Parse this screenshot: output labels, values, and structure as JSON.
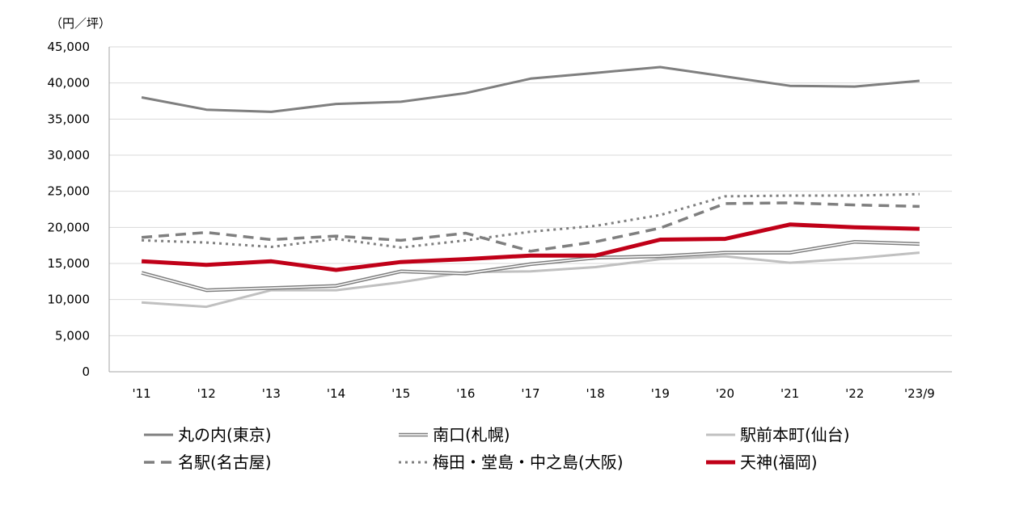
{
  "chart_data": {
    "type": "line",
    "unit_label": "（円／坪）",
    "x": [
      "'11",
      "'12",
      "'13",
      "'14",
      "'15",
      "'16",
      "'17",
      "'18",
      "'19",
      "'20",
      "'21",
      "'22",
      "'23/9"
    ],
    "y_ticks": [
      "0",
      "5,000",
      "10,000",
      "15,000",
      "20,000",
      "25,000",
      "30,000",
      "35,000",
      "40,000",
      "45,000"
    ],
    "ylim": [
      0,
      45000
    ],
    "grid": true,
    "legend_position": "bottom",
    "series": [
      {
        "name": "丸の内(東京)",
        "color": "#7f7f7f",
        "style": "solid",
        "values": [
          38000,
          36300,
          36000,
          37100,
          37400,
          38600,
          40600,
          41400,
          42200,
          40900,
          39600,
          39500,
          40300
        ]
      },
      {
        "name": "南口(札幌)",
        "color": "#7f7f7f",
        "style": "double",
        "values": [
          13700,
          11300,
          11600,
          11900,
          13900,
          13600,
          14900,
          15800,
          16000,
          16500,
          16500,
          18000,
          17700
        ]
      },
      {
        "name": "駅前本町(仙台)",
        "color": "#c0c0c0",
        "style": "solid",
        "values": [
          9600,
          9000,
          11300,
          11300,
          12400,
          13800,
          13900,
          14500,
          15600,
          16000,
          15100,
          15700,
          16500
        ]
      },
      {
        "name": "名駅(名古屋)",
        "color": "#7f7f7f",
        "style": "dashed",
        "values": [
          18600,
          19300,
          18300,
          18800,
          18200,
          19200,
          16700,
          18000,
          19900,
          23300,
          23400,
          23100,
          22900
        ]
      },
      {
        "name": "梅田・堂島・中之島(大阪)",
        "color": "#7f7f7f",
        "style": "dotted",
        "values": [
          18200,
          17900,
          17300,
          18400,
          17200,
          18200,
          19400,
          20200,
          21700,
          24300,
          24400,
          24400,
          24600
        ]
      },
      {
        "name": "天神(福岡)",
        "color": "#c00018",
        "style": "thick",
        "values": [
          15300,
          14800,
          15300,
          14100,
          15200,
          15600,
          16100,
          16100,
          18300,
          18400,
          20400,
          20000,
          19800
        ]
      }
    ]
  }
}
